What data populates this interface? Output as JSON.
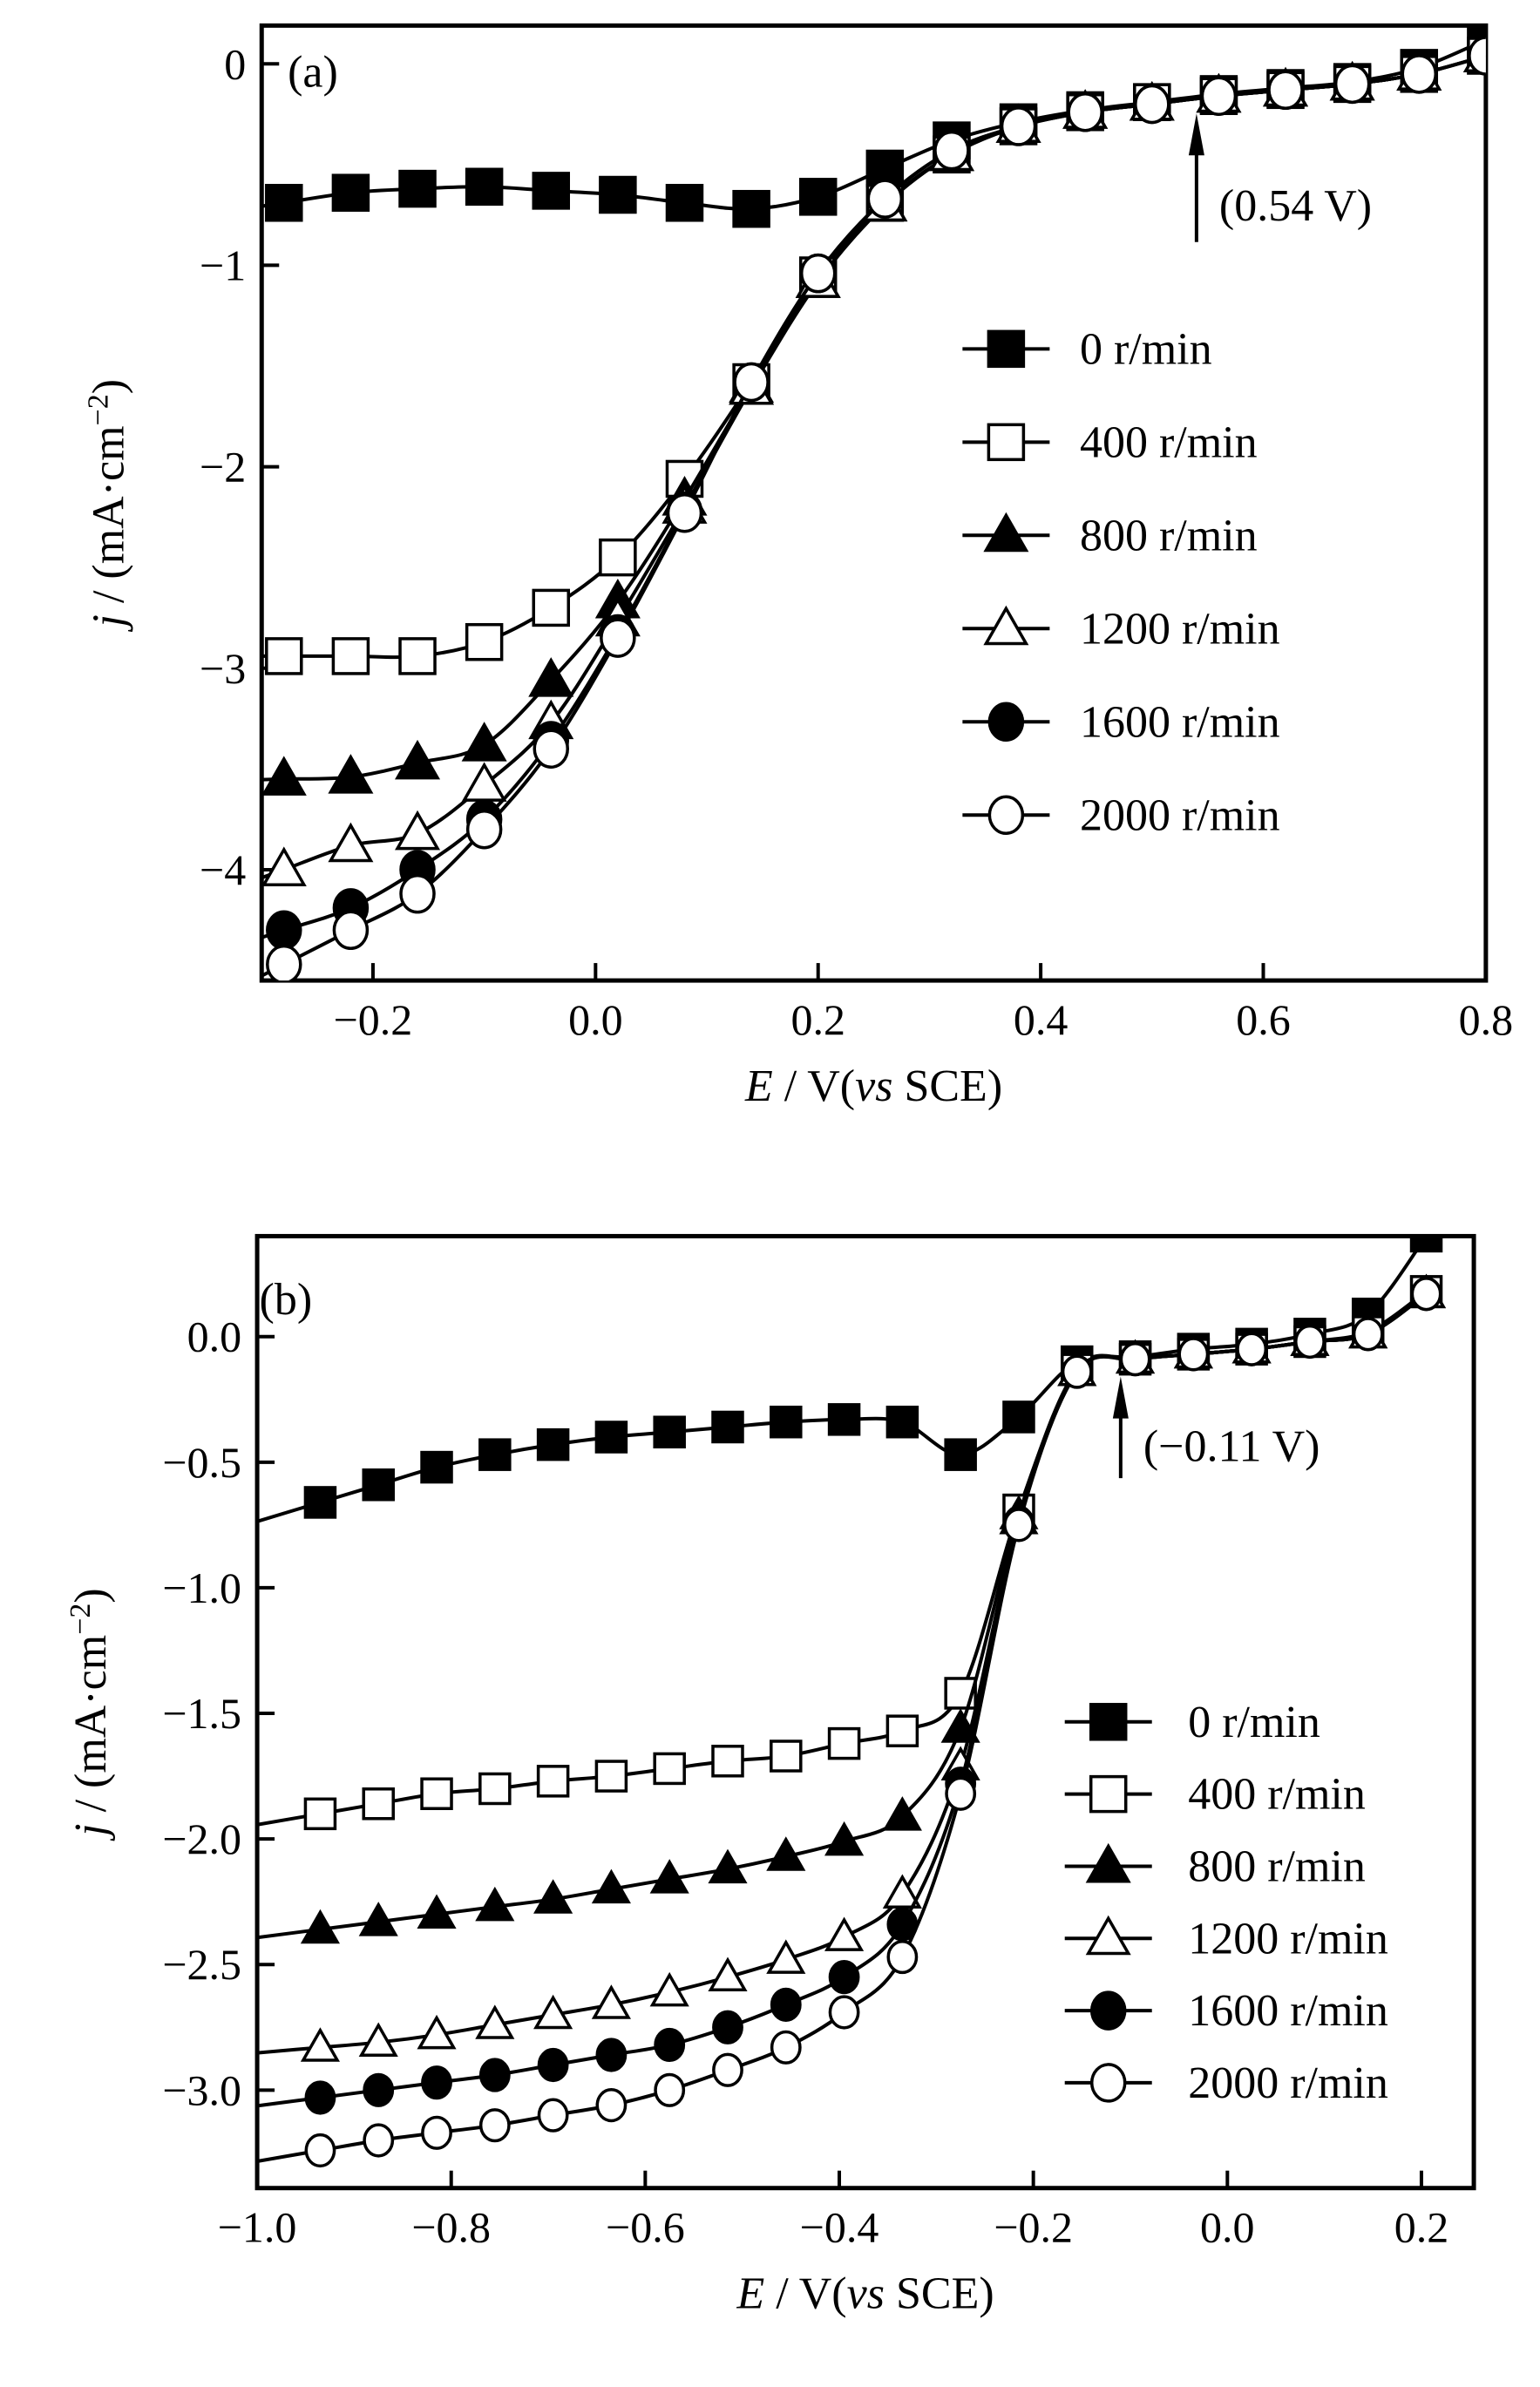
{
  "chart_data": [
    {
      "type": "line",
      "panel_label": "(a)",
      "xlabel": "E / V(vs SCE)",
      "ylabel": "j / (mA·cm⁻²)",
      "xlim": [
        -0.3,
        0.8
      ],
      "ylim": [
        -4.55,
        0.19
      ],
      "xticks": [
        -0.2,
        0.0,
        0.2,
        0.4,
        0.6,
        0.8
      ],
      "xtick_labels": [
        "−0.2",
        "0.0",
        "0.2",
        "0.4",
        "0.6",
        "0.8"
      ],
      "yticks": [
        0,
        -1,
        -2,
        -3,
        -4
      ],
      "ytick_labels": [
        "0",
        "−1",
        "−2",
        "−3",
        "−4"
      ],
      "legend_position": "center-right",
      "annotation": {
        "text": "(0.54 V)",
        "x": 0.54
      },
      "x": [
        -0.28,
        -0.22,
        -0.16,
        -0.1,
        -0.04,
        0.02,
        0.08,
        0.14,
        0.2,
        0.26,
        0.32,
        0.38,
        0.44,
        0.5,
        0.56,
        0.62,
        0.68,
        0.74,
        0.8
      ],
      "series": [
        {
          "name": "0 r/min",
          "marker": "square-filled",
          "values": [
            -0.69,
            -0.64,
            -0.62,
            -0.61,
            -0.63,
            -0.65,
            -0.69,
            -0.72,
            -0.66,
            -0.52,
            -0.38,
            -0.29,
            -0.23,
            -0.19,
            -0.15,
            -0.12,
            -0.09,
            -0.02,
            0.12
          ]
        },
        {
          "name": "400 r/min",
          "marker": "square-open",
          "values": [
            -2.94,
            -2.94,
            -2.94,
            -2.87,
            -2.7,
            -2.45,
            -2.06,
            -1.58,
            -1.05,
            -0.69,
            -0.45,
            -0.31,
            -0.24,
            -0.19,
            -0.16,
            -0.13,
            -0.1,
            -0.05,
            0.04
          ]
        },
        {
          "name": "800 r/min",
          "marker": "triangle-filled",
          "values": [
            -3.55,
            -3.54,
            -3.47,
            -3.38,
            -3.06,
            -2.67,
            -2.16,
            -1.6,
            -1.08,
            -0.7,
            -0.45,
            -0.31,
            -0.24,
            -0.2,
            -0.16,
            -0.13,
            -0.1,
            -0.05,
            0.04
          ]
        },
        {
          "name": "1200 r/min",
          "marker": "triangle-open",
          "values": [
            -4.0,
            -3.88,
            -3.82,
            -3.58,
            -3.27,
            -2.76,
            -2.2,
            -1.61,
            -1.08,
            -0.7,
            -0.45,
            -0.31,
            -0.24,
            -0.2,
            -0.16,
            -0.13,
            -0.1,
            -0.05,
            0.04
          ]
        },
        {
          "name": "1600 r/min",
          "marker": "circle-filled",
          "values": [
            -4.3,
            -4.19,
            -4.0,
            -3.75,
            -3.36,
            -2.83,
            -2.22,
            -1.58,
            -1.04,
            -0.67,
            -0.43,
            -0.31,
            -0.24,
            -0.2,
            -0.16,
            -0.13,
            -0.1,
            -0.05,
            0.04
          ]
        },
        {
          "name": "2000 r/min",
          "marker": "circle-open",
          "values": [
            -4.47,
            -4.3,
            -4.12,
            -3.8,
            -3.4,
            -2.85,
            -2.23,
            -1.58,
            -1.04,
            -0.67,
            -0.43,
            -0.31,
            -0.24,
            -0.2,
            -0.16,
            -0.13,
            -0.1,
            -0.05,
            0.04
          ]
        }
      ]
    },
    {
      "type": "line",
      "panel_label": "(b)",
      "xlabel": "E / V(vs SCE)",
      "ylabel": "j / (mA·cm⁻²)",
      "xlim": [
        -1.0,
        0.254
      ],
      "ylim": [
        -3.39,
        0.4
      ],
      "xticks": [
        -1.0,
        -0.8,
        -0.6,
        -0.4,
        -0.2,
        0.0,
        0.2
      ],
      "xtick_labels": [
        "−1.0",
        "−0.8",
        "−0.6",
        "−0.4",
        "−0.2",
        "0.0",
        "0.2"
      ],
      "yticks": [
        0.0,
        -0.5,
        -1.0,
        -1.5,
        -2.0,
        -2.5,
        -3.0
      ],
      "ytick_labels": [
        "0.0",
        "−0.5",
        "−1.0",
        "−1.5",
        "−2.0",
        "−2.5",
        "−3.0"
      ],
      "legend_position": "bottom-right",
      "annotation": {
        "text": "(−0.11 V)",
        "x": -0.11
      },
      "x": [
        -0.935,
        -0.875,
        -0.815,
        -0.755,
        -0.695,
        -0.635,
        -0.575,
        -0.515,
        -0.455,
        -0.395,
        -0.335,
        -0.275,
        -0.215,
        -0.155,
        -0.095,
        -0.035,
        0.025,
        0.085,
        0.145,
        0.205
      ],
      "series": [
        {
          "name": "0 r/min",
          "marker": "square-filled",
          "values": [
            -0.66,
            -0.59,
            -0.52,
            -0.47,
            -0.43,
            -0.4,
            -0.38,
            -0.36,
            -0.34,
            -0.33,
            -0.34,
            -0.47,
            -0.32,
            -0.1,
            -0.08,
            -0.05,
            -0.03,
            0.01,
            0.09,
            0.4
          ]
        },
        {
          "name": "400 r/min",
          "marker": "square-open",
          "values": [
            -1.9,
            -1.86,
            -1.82,
            -1.8,
            -1.77,
            -1.75,
            -1.72,
            -1.69,
            -1.67,
            -1.62,
            -1.57,
            -1.42,
            -0.69,
            -0.13,
            -0.09,
            -0.07,
            -0.05,
            -0.02,
            0.02,
            0.18
          ]
        },
        {
          "name": "800 r/min",
          "marker": "triangle-filled",
          "values": [
            -2.36,
            -2.33,
            -2.3,
            -2.27,
            -2.24,
            -2.2,
            -2.16,
            -2.12,
            -2.07,
            -2.01,
            -1.91,
            -1.56,
            -0.71,
            -0.14,
            -0.09,
            -0.07,
            -0.05,
            -0.02,
            0.01,
            0.17
          ]
        },
        {
          "name": "1200 r/min",
          "marker": "triangle-open",
          "values": [
            -2.83,
            -2.81,
            -2.78,
            -2.74,
            -2.7,
            -2.66,
            -2.61,
            -2.55,
            -2.48,
            -2.39,
            -2.22,
            -1.71,
            -0.73,
            -0.14,
            -0.09,
            -0.07,
            -0.05,
            -0.02,
            0.01,
            0.17
          ]
        },
        {
          "name": "1600 r/min",
          "marker": "circle-filled",
          "values": [
            -3.03,
            -3.0,
            -2.97,
            -2.94,
            -2.9,
            -2.86,
            -2.82,
            -2.75,
            -2.66,
            -2.55,
            -2.34,
            -1.78,
            -0.74,
            -0.14,
            -0.09,
            -0.07,
            -0.05,
            -0.02,
            0.01,
            0.17
          ]
        },
        {
          "name": "2000 r/min",
          "marker": "circle-open",
          "values": [
            -3.24,
            -3.2,
            -3.17,
            -3.14,
            -3.1,
            -3.06,
            -3.0,
            -2.92,
            -2.83,
            -2.69,
            -2.47,
            -1.82,
            -0.75,
            -0.14,
            -0.09,
            -0.07,
            -0.05,
            -0.02,
            0.01,
            0.17
          ]
        }
      ]
    }
  ]
}
